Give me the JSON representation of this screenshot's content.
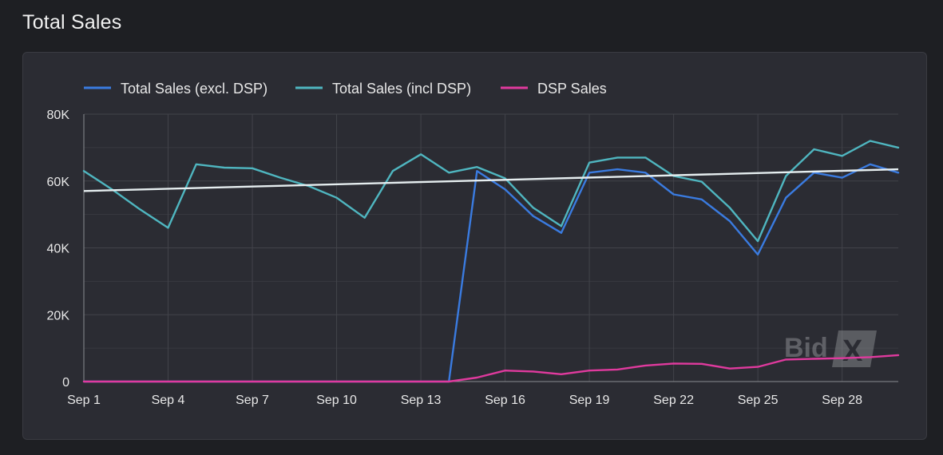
{
  "page": {
    "title": "Total Sales"
  },
  "watermark": {
    "text": "Bid",
    "mark": "X"
  },
  "colors": {
    "background": "#1e1f23",
    "card": "#2b2c33",
    "grid": "#42434a",
    "axis": "#8a8b90",
    "trend": "#e6eef0"
  },
  "chart_data": {
    "type": "line",
    "title": "",
    "xlabel": "",
    "ylabel": "",
    "ylim": [
      0,
      80000
    ],
    "yticks": [
      0,
      20000,
      40000,
      60000,
      80000
    ],
    "ytick_labels": [
      "0",
      "20K",
      "40K",
      "60K",
      "80K"
    ],
    "xtick_labels": [
      "Sep 1",
      "Sep 4",
      "Sep 7",
      "Sep 10",
      "Sep 13",
      "Sep 16",
      "Sep 19",
      "Sep 22",
      "Sep 25",
      "Sep 28"
    ],
    "xtick_days": [
      1,
      4,
      7,
      10,
      13,
      16,
      19,
      22,
      25,
      28
    ],
    "x": [
      1,
      2,
      3,
      4,
      5,
      6,
      7,
      8,
      9,
      10,
      11,
      12,
      13,
      14,
      15,
      16,
      17,
      18,
      19,
      20,
      21,
      22,
      23,
      24,
      25,
      26,
      27,
      28,
      29,
      30
    ],
    "grid": true,
    "legend_position": "top-left",
    "series": [
      {
        "name": "Total Sales (excl. DSP)",
        "color": "#3a7be0",
        "values": [
          0,
          0,
          0,
          0,
          0,
          0,
          0,
          0,
          0,
          0,
          0,
          0,
          0,
          0,
          63000,
          57500,
          49500,
          44500,
          62500,
          63500,
          62500,
          56000,
          54500,
          48000,
          38000,
          55000,
          62500,
          61000,
          65000,
          62500
        ]
      },
      {
        "name": "Total Sales (incl DSP)",
        "color": "#4fb6c0",
        "values": [
          63000,
          57500,
          51500,
          46000,
          65000,
          64000,
          63800,
          61000,
          58500,
          55000,
          49000,
          63000,
          68000,
          62500,
          64200,
          60800,
          52000,
          46500,
          65500,
          67000,
          67000,
          61500,
          59800,
          52000,
          42000,
          61500,
          69500,
          67500,
          72000,
          70000
        ]
      },
      {
        "name": "DSP Sales",
        "color": "#e03a9e",
        "values": [
          0,
          0,
          0,
          0,
          0,
          0,
          0,
          0,
          0,
          0,
          0,
          0,
          0,
          0,
          1200,
          3300,
          3000,
          2200,
          3300,
          3600,
          4800,
          5400,
          5300,
          3900,
          4400,
          6600,
          6800,
          7000,
          7300,
          7900
        ]
      }
    ],
    "trendline": {
      "series": "Total Sales (incl DSP)",
      "start": 57000,
      "end": 63500
    }
  }
}
